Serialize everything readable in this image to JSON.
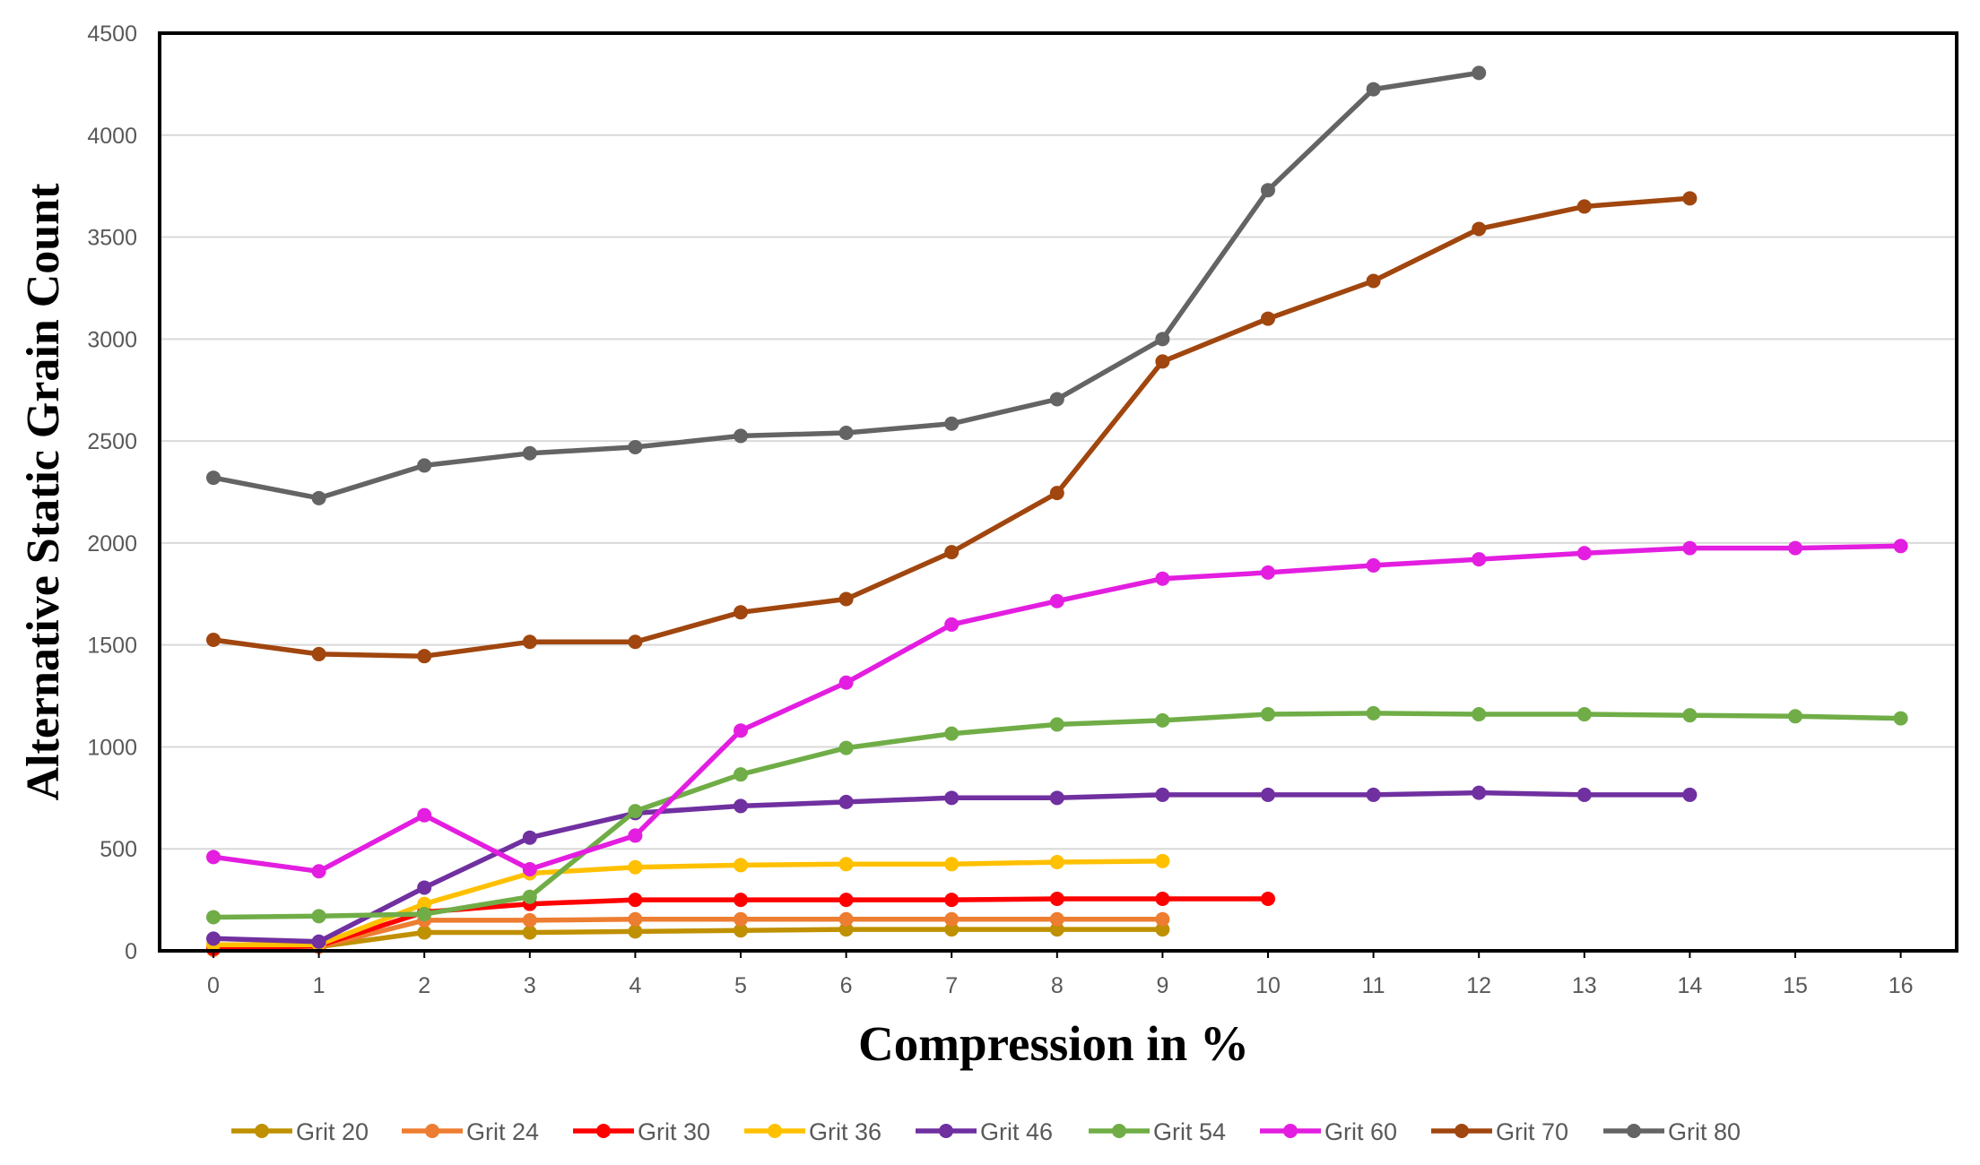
{
  "chart_data": {
    "type": "line",
    "title": "",
    "xlabel": "Compression in %",
    "ylabel": "Alternative Static Grain Count",
    "xlim": [
      0,
      16
    ],
    "ylim": [
      0,
      4500
    ],
    "x_ticks": [
      "0",
      "1",
      "2",
      "3",
      "4",
      "5",
      "6",
      "7",
      "8",
      "9",
      "10",
      "11",
      "12",
      "13",
      "14",
      "15",
      "16"
    ],
    "y_ticks": [
      "0",
      "500",
      "1000",
      "1500",
      "2000",
      "2500",
      "3000",
      "3500",
      "4000",
      "4500"
    ],
    "grid": true,
    "legend_position": "bottom",
    "series": [
      {
        "name": "Grit 20",
        "color": "#bf9000",
        "x": [
          0,
          1,
          2,
          3,
          4,
          5,
          6,
          7,
          8,
          9
        ],
        "values": [
          20,
          20,
          90,
          90,
          95,
          100,
          105,
          105,
          105,
          105
        ]
      },
      {
        "name": "Grit 24",
        "color": "#ed7d31",
        "x": [
          0,
          1,
          2,
          3,
          4,
          5,
          6,
          7,
          8,
          9
        ],
        "values": [
          5,
          20,
          150,
          150,
          155,
          155,
          155,
          155,
          155,
          155
        ]
      },
      {
        "name": "Grit 30",
        "color": "#ff0000",
        "x": [
          0,
          1,
          2,
          3,
          4,
          5,
          6,
          7,
          8,
          9,
          10
        ],
        "values": [
          10,
          25,
          190,
          230,
          250,
          250,
          250,
          250,
          255,
          255,
          255
        ]
      },
      {
        "name": "Grit 36",
        "color": "#ffc000",
        "x": [
          0,
          1,
          2,
          3,
          4,
          5,
          6,
          7,
          8,
          9
        ],
        "values": [
          30,
          30,
          230,
          380,
          410,
          420,
          425,
          425,
          435,
          440
        ]
      },
      {
        "name": "Grit 46",
        "color": "#7030a0",
        "x": [
          0,
          1,
          2,
          3,
          4,
          5,
          6,
          7,
          8,
          9,
          10,
          11,
          12,
          13,
          14
        ],
        "values": [
          60,
          45,
          310,
          555,
          675,
          710,
          730,
          750,
          750,
          765,
          765,
          765,
          775,
          765,
          765
        ]
      },
      {
        "name": "Grit 54",
        "color": "#70ad47",
        "x": [
          0,
          1,
          2,
          3,
          4,
          5,
          6,
          7,
          8,
          9,
          10,
          11,
          12,
          13,
          14,
          15,
          16
        ],
        "values": [
          165,
          170,
          180,
          265,
          685,
          865,
          995,
          1065,
          1110,
          1130,
          1160,
          1165,
          1160,
          1160,
          1155,
          1150,
          1140
        ]
      },
      {
        "name": "Grit 60",
        "color": "#e31ee0",
        "x": [
          0,
          1,
          2,
          3,
          4,
          5,
          6,
          7,
          8,
          9,
          10,
          11,
          12,
          13,
          14,
          15,
          16
        ],
        "values": [
          460,
          390,
          665,
          400,
          565,
          1080,
          1315,
          1600,
          1715,
          1825,
          1855,
          1890,
          1920,
          1950,
          1975,
          1975,
          1985
        ]
      },
      {
        "name": "Grit 70",
        "color": "#a0460e",
        "x": [
          0,
          1,
          2,
          3,
          4,
          5,
          6,
          7,
          8,
          9,
          10,
          11,
          12,
          13,
          14
        ],
        "values": [
          1525,
          1455,
          1445,
          1515,
          1515,
          1660,
          1725,
          1955,
          2245,
          2890,
          3100,
          3285,
          3540,
          3650,
          3690
        ]
      },
      {
        "name": "Grit 80",
        "color": "#646464",
        "x": [
          0,
          1,
          2,
          3,
          4,
          5,
          6,
          7,
          8,
          9,
          10,
          11,
          12
        ],
        "values": [
          2320,
          2220,
          2380,
          2440,
          2470,
          2525,
          2540,
          2585,
          2705,
          3000,
          3730,
          4225,
          4305
        ]
      }
    ]
  }
}
